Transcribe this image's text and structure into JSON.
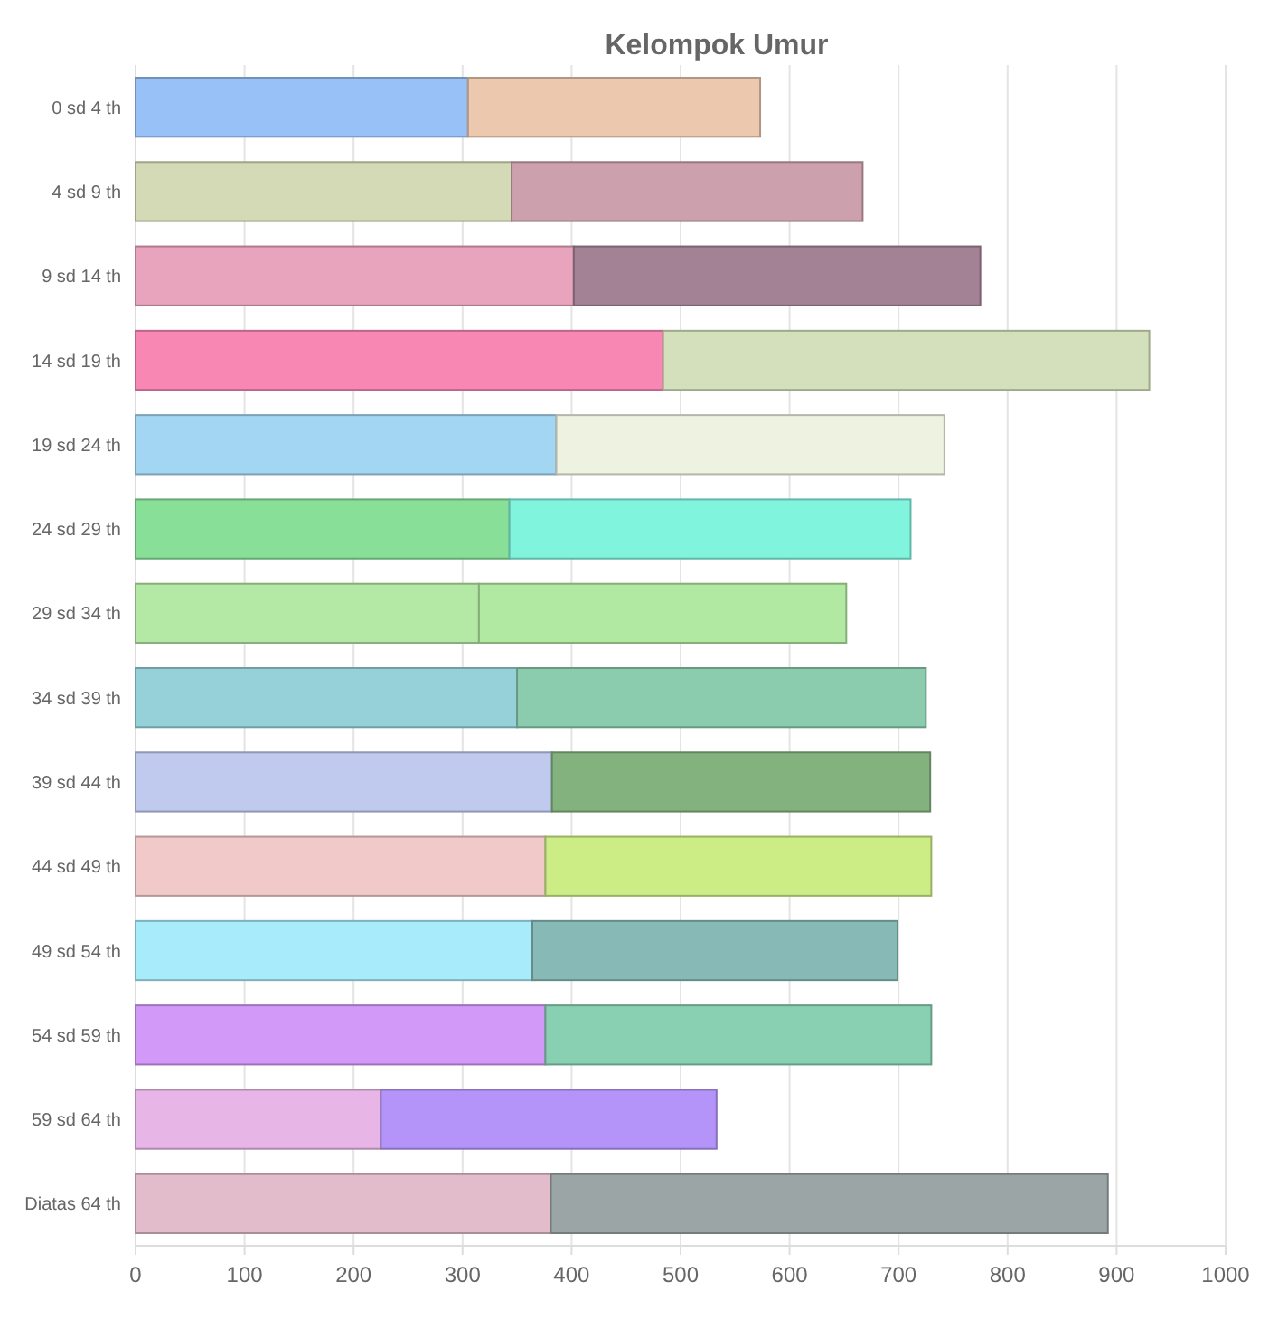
{
  "chart_data": {
    "type": "bar",
    "title": "Kelompok Umur",
    "orientation": "horizontal",
    "stacked": true,
    "grid": "x",
    "categories": [
      "0 sd 4 th",
      "4 sd 9 th",
      "9 sd 14 th",
      "14 sd 19 th",
      "19 sd 24 th",
      "24 sd 29 th",
      "29 sd 34 th",
      "34 sd 39 th",
      "39 sd 44 th",
      "44 sd 49 th",
      "49 sd 54 th",
      "54 sd 59 th",
      "59 sd 64 th",
      "Diatas 64 th"
    ],
    "series": [
      {
        "values": [
          305,
          345,
          402,
          484,
          386,
          343,
          315,
          350,
          382,
          376,
          364,
          376,
          225,
          381
        ],
        "colors": [
          "#97c1f7",
          "#d3dab5",
          "#e8a4bd",
          "#f987b4",
          "#a3d6f2",
          "#88df97",
          "#b4e8a5",
          "#96d1da",
          "#bfcaee",
          "#f2c9c9",
          "#a8ebfb",
          "#d299f9",
          "#e7b6e6",
          "#e2bccb"
        ]
      },
      {
        "values": [
          268,
          322,
          373,
          446,
          356,
          368,
          337,
          375,
          347,
          354,
          335,
          354,
          308,
          511
        ],
        "colors": [
          "#ebc8ae",
          "#cda0ad",
          "#a38296",
          "#d3e0bb",
          "#eef2e0",
          "#81f4de",
          "#b1e8a2",
          "#8bcbae",
          "#84b27f",
          "#ccec85",
          "#87bab6",
          "#89cfb2",
          "#b494f8",
          "#9ba5a5"
        ]
      }
    ],
    "xlim": [
      0,
      1000
    ],
    "xticks": [
      0,
      100,
      200,
      300,
      400,
      500,
      600,
      700,
      800,
      900,
      1000
    ]
  }
}
